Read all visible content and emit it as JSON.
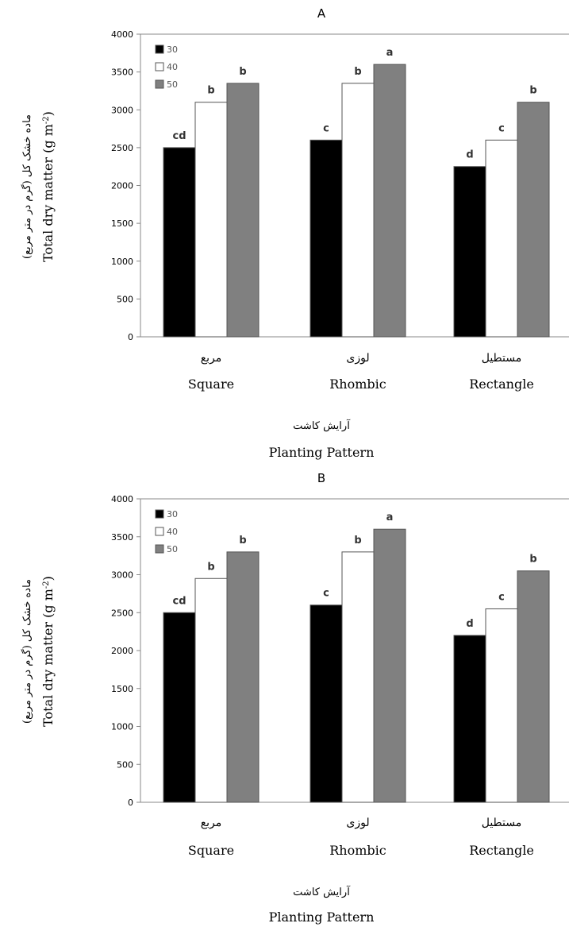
{
  "chart_data": [
    {
      "type": "bar",
      "title": "A",
      "categories": [
        "Square",
        "Rhombic",
        "Rectangle"
      ],
      "categories_fa": [
        "مربع",
        "لوزی",
        "مستطیل"
      ],
      "xlabel": "Planting Pattern",
      "xlabel_fa": "آرایش کاشت",
      "ylabel": "Total dry matter (g m-2)",
      "ylabel_fa": "ماده خشک کل (گرم در متر مربع)",
      "ylim": [
        0,
        4000
      ],
      "yticks": [
        0,
        500,
        1000,
        1500,
        2000,
        2500,
        3000,
        3500,
        4000
      ],
      "legend_position": "top-left",
      "series": [
        {
          "name": "30",
          "color": "#000000",
          "values": [
            2500,
            2600,
            2250
          ],
          "labels": [
            "cd",
            "c",
            "d"
          ]
        },
        {
          "name": "40",
          "color": "#ffffff",
          "values": [
            3100,
            3350,
            2600
          ],
          "labels": [
            "b",
            "b",
            "c"
          ]
        },
        {
          "name": "50",
          "color": "#808080",
          "values": [
            3350,
            3600,
            3100
          ],
          "labels": [
            "b",
            "a",
            "b"
          ]
        }
      ]
    },
    {
      "type": "bar",
      "title": "B",
      "categories": [
        "Square",
        "Rhombic",
        "Rectangle"
      ],
      "categories_fa": [
        "مربع",
        "لوزی",
        "مستطیل"
      ],
      "xlabel": "Planting Pattern",
      "xlabel_fa": "آرایش کاشت",
      "ylabel": "Total dry matter (g m-2)",
      "ylabel_fa": "ماده خشک کل (گرم در متر مربع)",
      "ylim": [
        0,
        4000
      ],
      "yticks": [
        0,
        500,
        1000,
        1500,
        2000,
        2500,
        3000,
        3500,
        4000
      ],
      "legend_position": "top-left",
      "series": [
        {
          "name": "30",
          "color": "#000000",
          "values": [
            2500,
            2600,
            2200
          ],
          "labels": [
            "cd",
            "c",
            "d"
          ]
        },
        {
          "name": "40",
          "color": "#ffffff",
          "values": [
            2950,
            3300,
            2550
          ],
          "labels": [
            "b",
            "b",
            "c"
          ]
        },
        {
          "name": "50",
          "color": "#808080",
          "values": [
            3300,
            3600,
            3050
          ],
          "labels": [
            "b",
            "a",
            "b"
          ]
        }
      ]
    }
  ]
}
